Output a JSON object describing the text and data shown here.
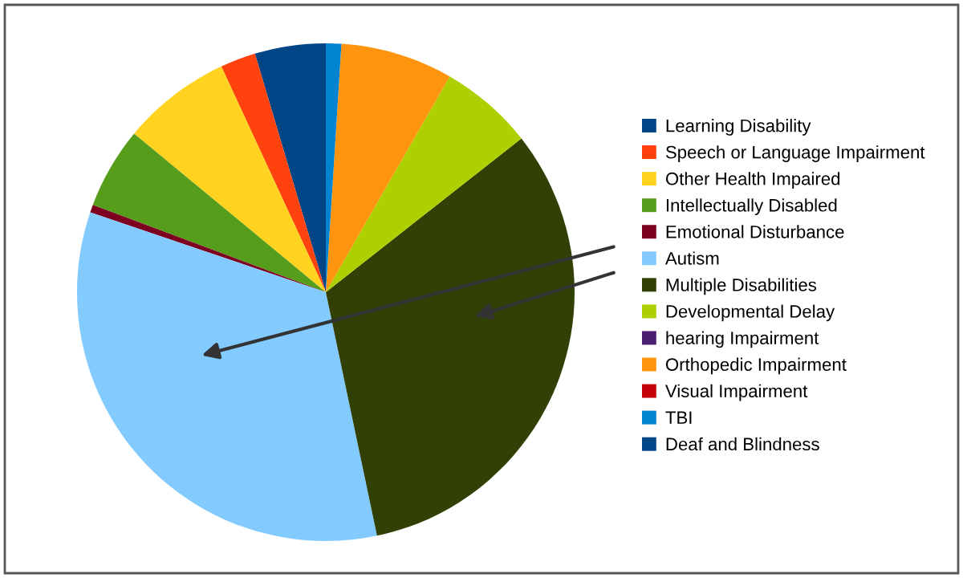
{
  "chart_data": {
    "type": "pie",
    "categories": [
      "Learning Disability",
      "Speech or Language Impairment",
      "Other Health Impaired",
      "Intellectually Disabled",
      "Emotional Disturbance",
      "Autism",
      "Multiple Disabilities",
      "Developmental Delay",
      "hearing Impairment",
      "Orthopedic Impairment",
      "Visual Impairment",
      "TBI",
      "Deaf and Blindness"
    ],
    "values": [
      4.6,
      2.3,
      7.1,
      5.3,
      0.5,
      33.5,
      32.3,
      6.1,
      0,
      7.3,
      0,
      1.0,
      0
    ],
    "colors": [
      "#004586",
      "#ff420e",
      "#ffd320",
      "#579d1c",
      "#7e0021",
      "#83caff",
      "#314004",
      "#aecf00",
      "#4b1f6f",
      "#ff950e",
      "#c5000b",
      "#0084d1",
      "#004586"
    ],
    "legend": "right"
  }
}
